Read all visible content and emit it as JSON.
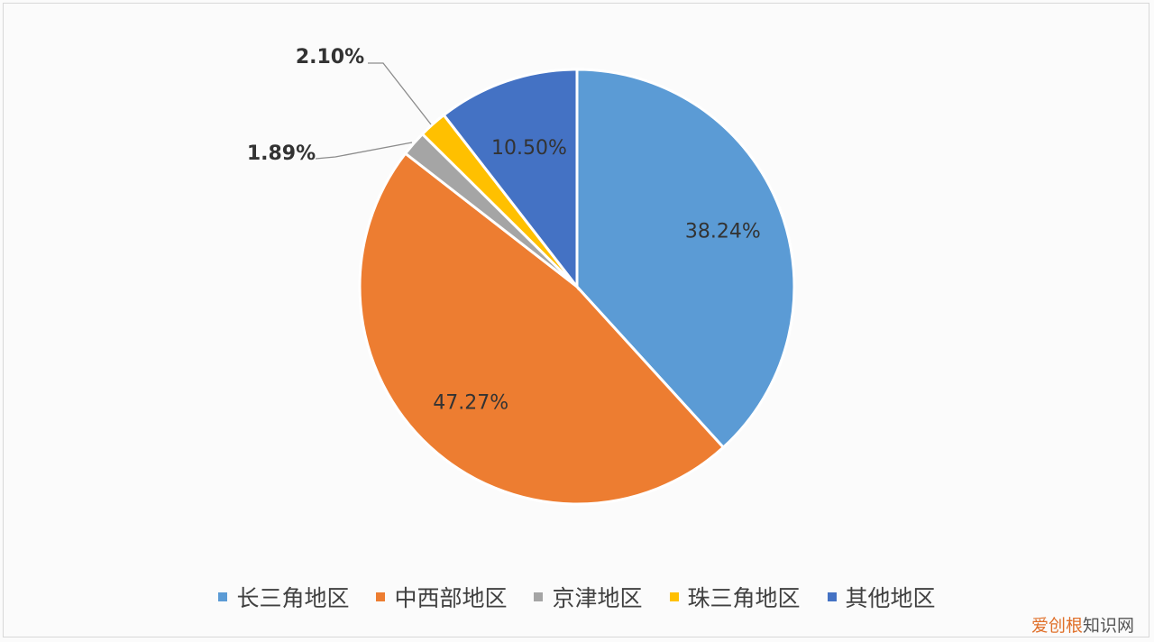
{
  "chart_data": {
    "type": "pie",
    "start_angle": "12 o'clock, clockwise",
    "slices": [
      {
        "name": "长三角地区",
        "value": 38.24,
        "label": "38.24%",
        "color": "#5B9BD5"
      },
      {
        "name": "中西部地区",
        "value": 47.27,
        "label": "47.27%",
        "color": "#ED7D31"
      },
      {
        "name": "京津地区",
        "value": 1.89,
        "label": "1.89%",
        "color": "#A5A5A5"
      },
      {
        "name": "珠三角地区",
        "value": 2.1,
        "label": "2.10%",
        "color": "#FFC000"
      },
      {
        "name": "其他地区",
        "value": 10.5,
        "label": "10.50%",
        "color": "#4472C4"
      }
    ],
    "legend_position": "bottom"
  },
  "watermark": {
    "part1": "爱创根",
    "part2": "知识网"
  }
}
